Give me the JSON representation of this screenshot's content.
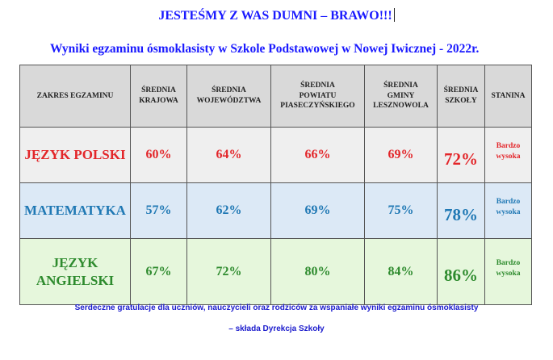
{
  "headline": "JESTEŚMY Z WAS DUMNI – BRAWO!!!",
  "subtitle": "Wyniki egzaminu ósmoklasisty w Szkole Podstawowej w Nowej Iwicznej - 2022r.",
  "table": {
    "headers": [
      "ZAKRES EGZAMINU",
      "ŚREDNIA\nKRAJOWA",
      "ŚREDNIA\nWOJEWÓDZTWA",
      "ŚREDNIA\nPOWIATU\nPIASECZYŃSKIEGO",
      "ŚREDNIA\nGMINY\nLESZNOWOLA",
      "ŚREDNIA\nSZKOŁY",
      "STANINA"
    ],
    "rows": [
      {
        "subject": "JĘZYK POLSKI",
        "krajowa": "60%",
        "wojewodztwa": "64%",
        "powiatu": "66%",
        "gminy": "69%",
        "szkoly": "72%",
        "stanina": "Bardzo\nwysoka",
        "color": "#e3262a"
      },
      {
        "subject": "MATEMATYKA",
        "krajowa": "57%",
        "wojewodztwa": "62%",
        "powiatu": "69%",
        "gminy": "75%",
        "szkoly": "78%",
        "stanina": "Bardzo\nwysoka",
        "color": "#1f78b4"
      },
      {
        "subject": "JĘZYK\nANGIELSKI",
        "krajowa": "67%",
        "wojewodztwa": "72%",
        "powiatu": "80%",
        "gminy": "84%",
        "szkoly": "86%",
        "stanina": "Bardzo\nwysoka",
        "color": "#2e8b2e"
      }
    ]
  },
  "footer": {
    "line1": "Serdeczne gratulacje dla uczniów, nauczycieli oraz rodziców za wspaniałe wyniki egzaminu ósmoklasisty",
    "line2": "– składa Dyrekcja Szkoły"
  }
}
